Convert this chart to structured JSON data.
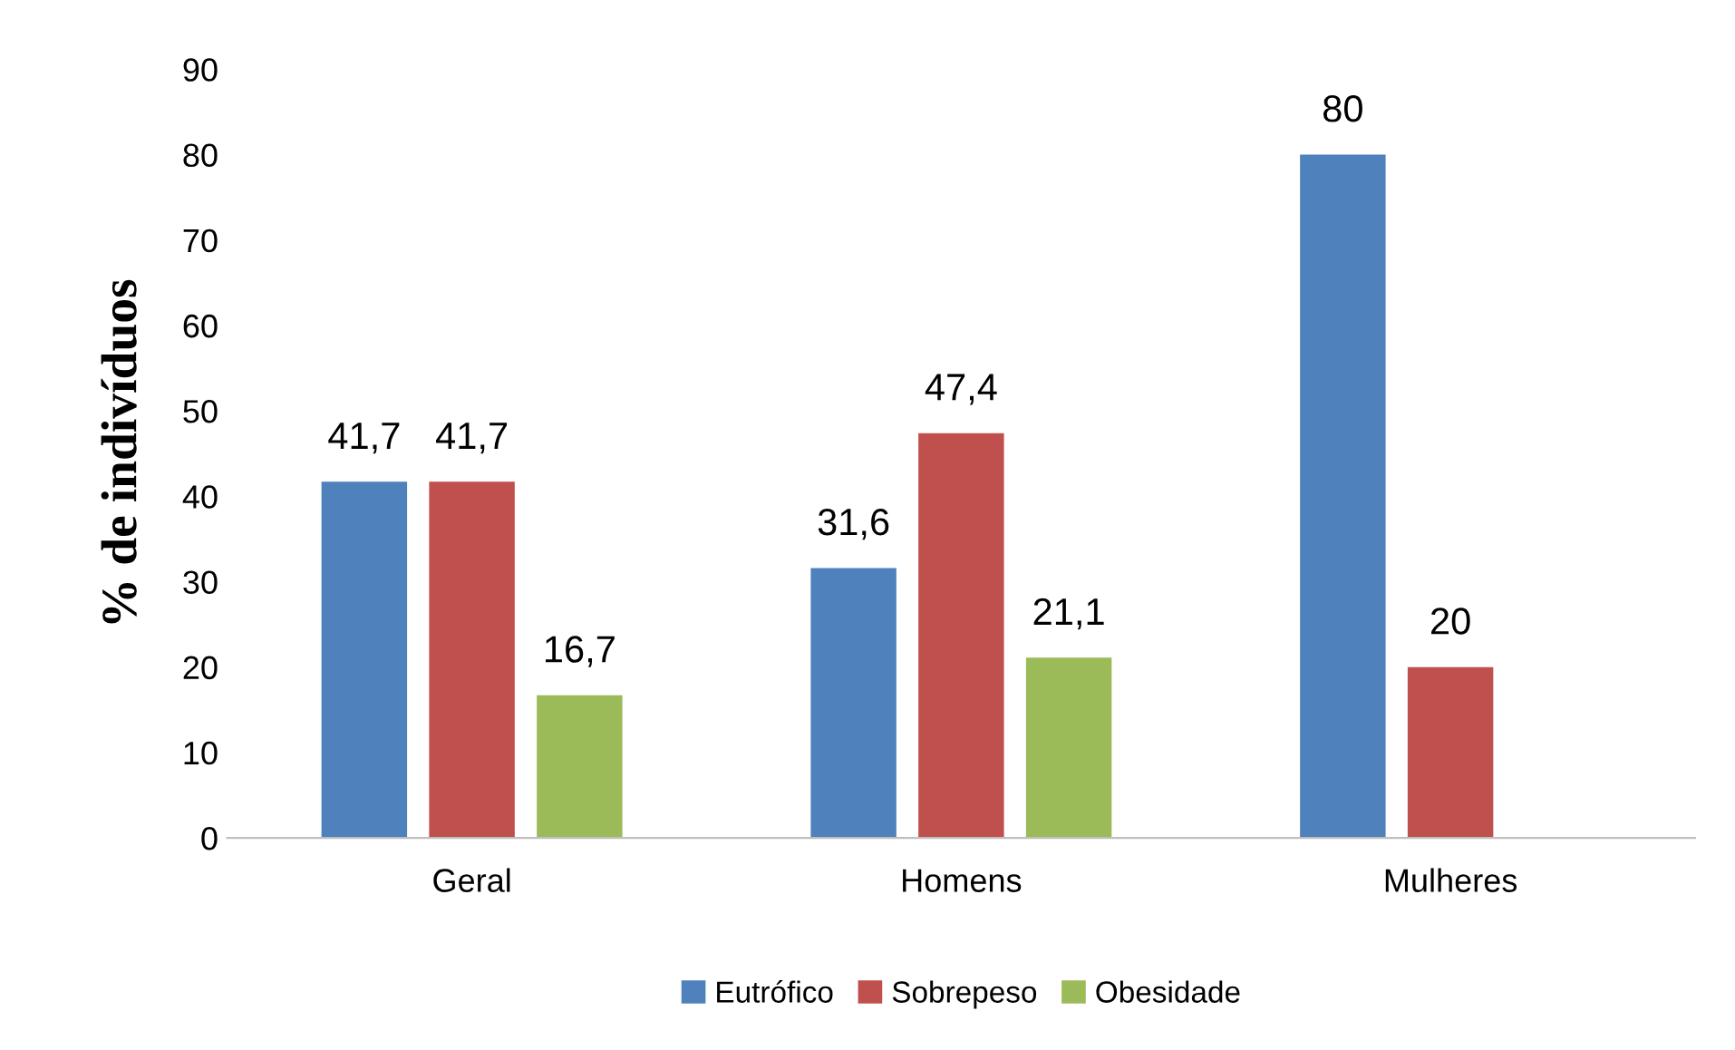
{
  "chart_data": {
    "type": "bar",
    "ylabel": "% de indivíduos",
    "categories": [
      "Geral",
      "Homens",
      "Mulheres"
    ],
    "series": [
      {
        "name": "Eutrófico",
        "color": "#4f81bd",
        "values": [
          41.7,
          31.6,
          80
        ],
        "value_labels": [
          "41,7",
          "31,6",
          "80"
        ]
      },
      {
        "name": "Sobrepeso",
        "color": "#c0504d",
        "values": [
          41.7,
          47.4,
          20
        ],
        "value_labels": [
          "41,7",
          "47,4",
          "20"
        ]
      },
      {
        "name": "Obesidade",
        "color": "#9bbb59",
        "values": [
          16.7,
          21.1,
          null
        ],
        "value_labels": [
          "16,7",
          "21,1",
          null
        ]
      }
    ],
    "ylim": [
      0,
      90
    ],
    "yticks": [
      0,
      10,
      20,
      30,
      40,
      50,
      60,
      70,
      80,
      90
    ],
    "grid": false,
    "legend": "bottom"
  }
}
